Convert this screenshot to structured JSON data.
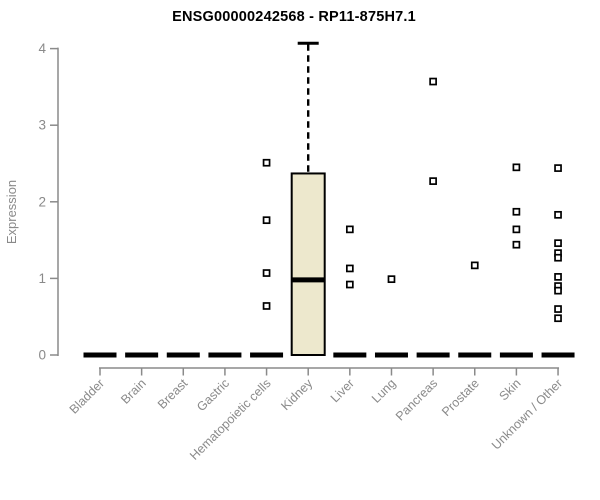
{
  "chart_data": {
    "type": "boxplot",
    "title": "ENSG00000242568 - RP11-875H7.1",
    "ylabel": "Expression",
    "xlabel": "",
    "ylim": [
      0,
      4
    ],
    "yticks": [
      0,
      1,
      2,
      3,
      4
    ],
    "grid": false,
    "legend": "none",
    "categories": [
      "Bladder",
      "Brain",
      "Breast",
      "Gastric",
      "Hematopoietic cells",
      "Kidney",
      "Liver",
      "Lung",
      "Pancreas",
      "Prostate",
      "Skin",
      "Unknown / Other"
    ],
    "boxes": [
      {
        "category": "Bladder",
        "q1": 0,
        "median": 0,
        "q3": 0,
        "whisker_low": 0,
        "whisker_high": 0,
        "outliers": []
      },
      {
        "category": "Brain",
        "q1": 0,
        "median": 0,
        "q3": 0,
        "whisker_low": 0,
        "whisker_high": 0,
        "outliers": []
      },
      {
        "category": "Breast",
        "q1": 0,
        "median": 0,
        "q3": 0,
        "whisker_low": 0,
        "whisker_high": 0,
        "outliers": []
      },
      {
        "category": "Gastric",
        "q1": 0,
        "median": 0,
        "q3": 0,
        "whisker_low": 0,
        "whisker_high": 0,
        "outliers": []
      },
      {
        "category": "Hematopoietic cells",
        "q1": 0,
        "median": 0,
        "q3": 0,
        "whisker_low": 0,
        "whisker_high": 0,
        "outliers": [
          2.51,
          1.76,
          1.07,
          0.64
        ]
      },
      {
        "category": "Kidney",
        "q1": 0,
        "median": 0.98,
        "q3": 2.37,
        "whisker_low": 0,
        "whisker_high": 4.07,
        "outliers": []
      },
      {
        "category": "Liver",
        "q1": 0,
        "median": 0,
        "q3": 0,
        "whisker_low": 0,
        "whisker_high": 0,
        "outliers": [
          1.64,
          1.13,
          0.92
        ]
      },
      {
        "category": "Lung",
        "q1": 0,
        "median": 0,
        "q3": 0,
        "whisker_low": 0,
        "whisker_high": 0,
        "outliers": [
          0.99
        ]
      },
      {
        "category": "Pancreas",
        "q1": 0,
        "median": 0,
        "q3": 0,
        "whisker_low": 0,
        "whisker_high": 0,
        "outliers": [
          3.57,
          2.27
        ]
      },
      {
        "category": "Prostate",
        "q1": 0,
        "median": 0,
        "q3": 0,
        "whisker_low": 0,
        "whisker_high": 0,
        "outliers": [
          1.17
        ]
      },
      {
        "category": "Skin",
        "q1": 0,
        "median": 0,
        "q3": 0,
        "whisker_low": 0,
        "whisker_high": 0,
        "outliers": [
          2.45,
          1.87,
          1.64,
          1.44
        ]
      },
      {
        "category": "Unknown / Other",
        "q1": 0,
        "median": 0,
        "q3": 0,
        "whisker_low": 0,
        "whisker_high": 0,
        "outliers": [
          2.44,
          1.83,
          1.46,
          1.33,
          1.27,
          1.02,
          0.9,
          0.84,
          0.6,
          0.48
        ]
      }
    ],
    "colors": {
      "box_fill": "#EDE8CD",
      "box_border": "#000000",
      "median": "#000000",
      "whisker": "#000000",
      "axis": "#8A8A8A",
      "tick_label": "#8A8A8A",
      "title": "#000000",
      "outlier_fill": "#FFFFFF",
      "outlier_border": "#000000",
      "background": "#FFFFFF"
    }
  }
}
